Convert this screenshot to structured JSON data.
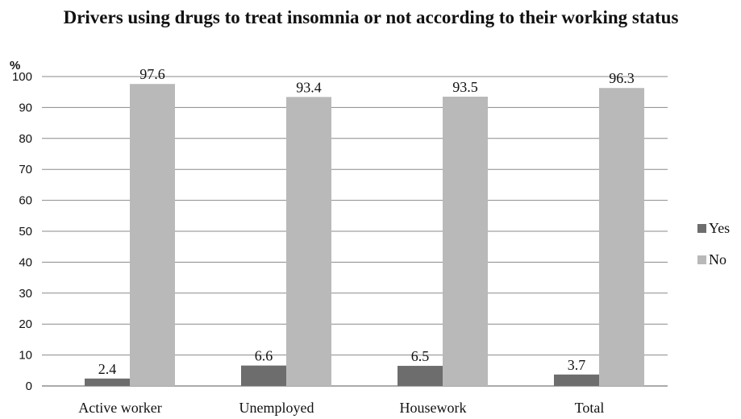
{
  "chart_data": {
    "type": "bar",
    "title": "Drivers using drugs to treat insomnia or not according to their working status",
    "ylabel": "%",
    "xlabel": "",
    "categories": [
      "Active worker",
      "Unemployed",
      "Housework",
      "Total"
    ],
    "series": [
      {
        "name": "Yes",
        "values": [
          2.4,
          6.6,
          6.5,
          3.7
        ],
        "color": "#6d6d6d"
      },
      {
        "name": "No",
        "values": [
          97.6,
          93.4,
          93.5,
          96.3
        ],
        "color": "#b9b9b9"
      }
    ],
    "ylim": [
      0,
      100
    ],
    "yticks": [
      0,
      10,
      20,
      30,
      40,
      50,
      60,
      70,
      80,
      90,
      100
    ],
    "grid": true,
    "legend": "right"
  }
}
